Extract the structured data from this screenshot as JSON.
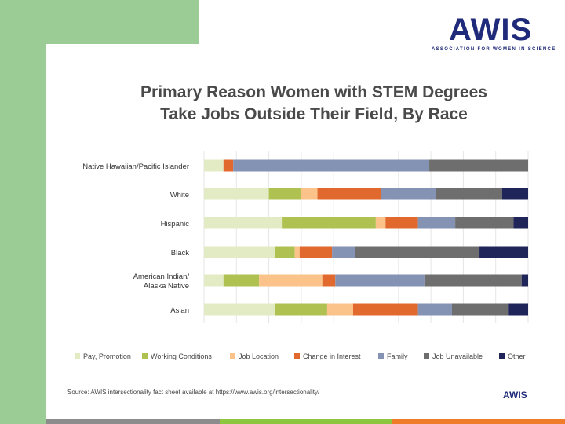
{
  "logo": {
    "word": "AWIS",
    "tagline": "ASSOCIATION FOR WOMEN IN SCIENCE"
  },
  "title_lines": [
    "Primary Reason Women with STEM Degrees",
    "Take Jobs Outside Their Field, By Race"
  ],
  "source": "Source: AWIS intersectionality fact sheet available at https://www.awis.org/intersectionality/",
  "footer_logo": "AWIS",
  "chart_data": {
    "type": "bar",
    "orientation": "horizontal",
    "stacked": true,
    "normalized": true,
    "title": "Primary Reason Women with STEM Degrees Take Jobs Outside Their Field, By Race",
    "categories": [
      [
        "Native Hawaiian/Pacific Islander"
      ],
      [
        "White"
      ],
      [
        "Hispanic"
      ],
      [
        "Black"
      ],
      [
        "American Indian/",
        "Alaska Native"
      ],
      [
        "Asian"
      ]
    ],
    "series": [
      {
        "name": "Pay, Promotion",
        "color": "#e3ebc4",
        "values": [
          6,
          20,
          24,
          22,
          6,
          22
        ]
      },
      {
        "name": "Working Conditions",
        "color": "#afc251",
        "values": [
          0,
          10,
          29,
          6,
          11,
          16
        ]
      },
      {
        "name": "Job Location",
        "color": "#fbc38a",
        "values": [
          0,
          5,
          3,
          1.5,
          19.5,
          8
        ]
      },
      {
        "name": "Change in Interest",
        "color": "#e2692d",
        "values": [
          3,
          19.5,
          10,
          10,
          4,
          20
        ]
      },
      {
        "name": "Family",
        "color": "#8492b3",
        "values": [
          60.5,
          17,
          11.5,
          7,
          27.5,
          10.5
        ]
      },
      {
        "name": "Job Unavailable",
        "color": "#6e6e6e",
        "values": [
          30.5,
          20.5,
          18,
          38.5,
          30,
          17.5
        ]
      },
      {
        "name": "Other",
        "color": "#1f2459",
        "values": [
          0,
          8,
          4.5,
          15,
          2,
          6
        ]
      }
    ],
    "xlim": [
      0,
      100
    ],
    "grid": true,
    "legend_position": "bottom"
  }
}
